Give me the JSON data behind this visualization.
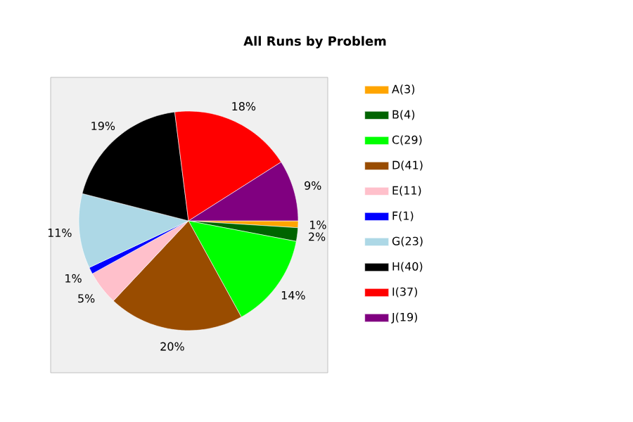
{
  "chart_data": {
    "type": "pie",
    "title": "All Runs by Problem",
    "categories": [
      "A(3)",
      "B(4)",
      "C(29)",
      "D(41)",
      "E(11)",
      "F(1)",
      "G(23)",
      "H(40)",
      "I(37)",
      "J(19)"
    ],
    "values": [
      1,
      2,
      14,
      20,
      5,
      1,
      11,
      19,
      18,
      9
    ],
    "value_labels": [
      "1%",
      "2%",
      "14%",
      "20%",
      "5%",
      "1%",
      "11%",
      "19%",
      "18%",
      "9%"
    ],
    "colors": [
      "#ffa500",
      "#006400",
      "#00ff00",
      "#994c00",
      "#ffc0cb",
      "#0000ff",
      "#add8e6",
      "#000000",
      "#ff0000",
      "#800080"
    ],
    "legend": "right"
  }
}
